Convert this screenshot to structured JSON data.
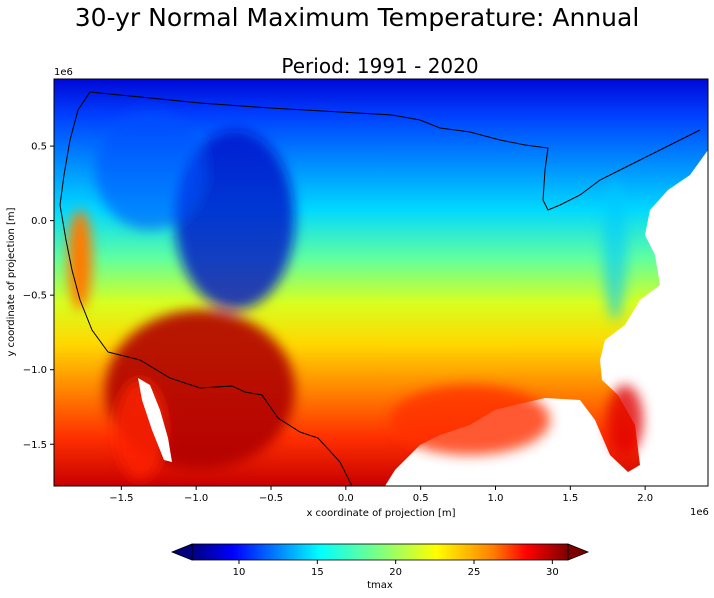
{
  "figure": {
    "suptitle": "30-yr Normal Maximum Temperature: Annual",
    "title": "Period: 1991 - 2020"
  },
  "map": {
    "xlabel": "x coordinate of projection [m]",
    "ylabel": "y coordinate of projection [m]",
    "x_offset_label": "1e6",
    "y_offset_label": "1e6",
    "xlim": [
      -1.95,
      2.42
    ],
    "ylim": [
      -1.78,
      0.95
    ],
    "xticks": [
      {
        "value": -1.5,
        "label": "−1.5"
      },
      {
        "value": -1.0,
        "label": "−1.0"
      },
      {
        "value": -0.5,
        "label": "−0.5"
      },
      {
        "value": 0.0,
        "label": "0.0"
      },
      {
        "value": 0.5,
        "label": "0.5"
      },
      {
        "value": 1.0,
        "label": "1.0"
      },
      {
        "value": 1.5,
        "label": "1.5"
      },
      {
        "value": 2.0,
        "label": "2.0"
      }
    ],
    "yticks": [
      {
        "value": 0.5,
        "label": "0.5"
      },
      {
        "value": 0.0,
        "label": "0.0"
      },
      {
        "value": -0.5,
        "label": "−0.5"
      },
      {
        "value": -1.0,
        "label": "−1.0"
      },
      {
        "value": -1.5,
        "label": "−1.5"
      }
    ]
  },
  "colorbar": {
    "label": "tmax",
    "range": [
      7,
      31
    ],
    "extend": "both",
    "colormap": "jet",
    "ticks": [
      {
        "value": 10,
        "label": "10"
      },
      {
        "value": 15,
        "label": "15"
      },
      {
        "value": 20,
        "label": "20"
      },
      {
        "value": 25,
        "label": "25"
      },
      {
        "value": 30,
        "label": "30"
      }
    ]
  },
  "colors": {
    "jet": [
      "#00007f",
      "#0000ff",
      "#007fff",
      "#00ffff",
      "#7fff7f",
      "#ffff00",
      "#ff7f00",
      "#ff0000",
      "#7f0000"
    ]
  }
}
